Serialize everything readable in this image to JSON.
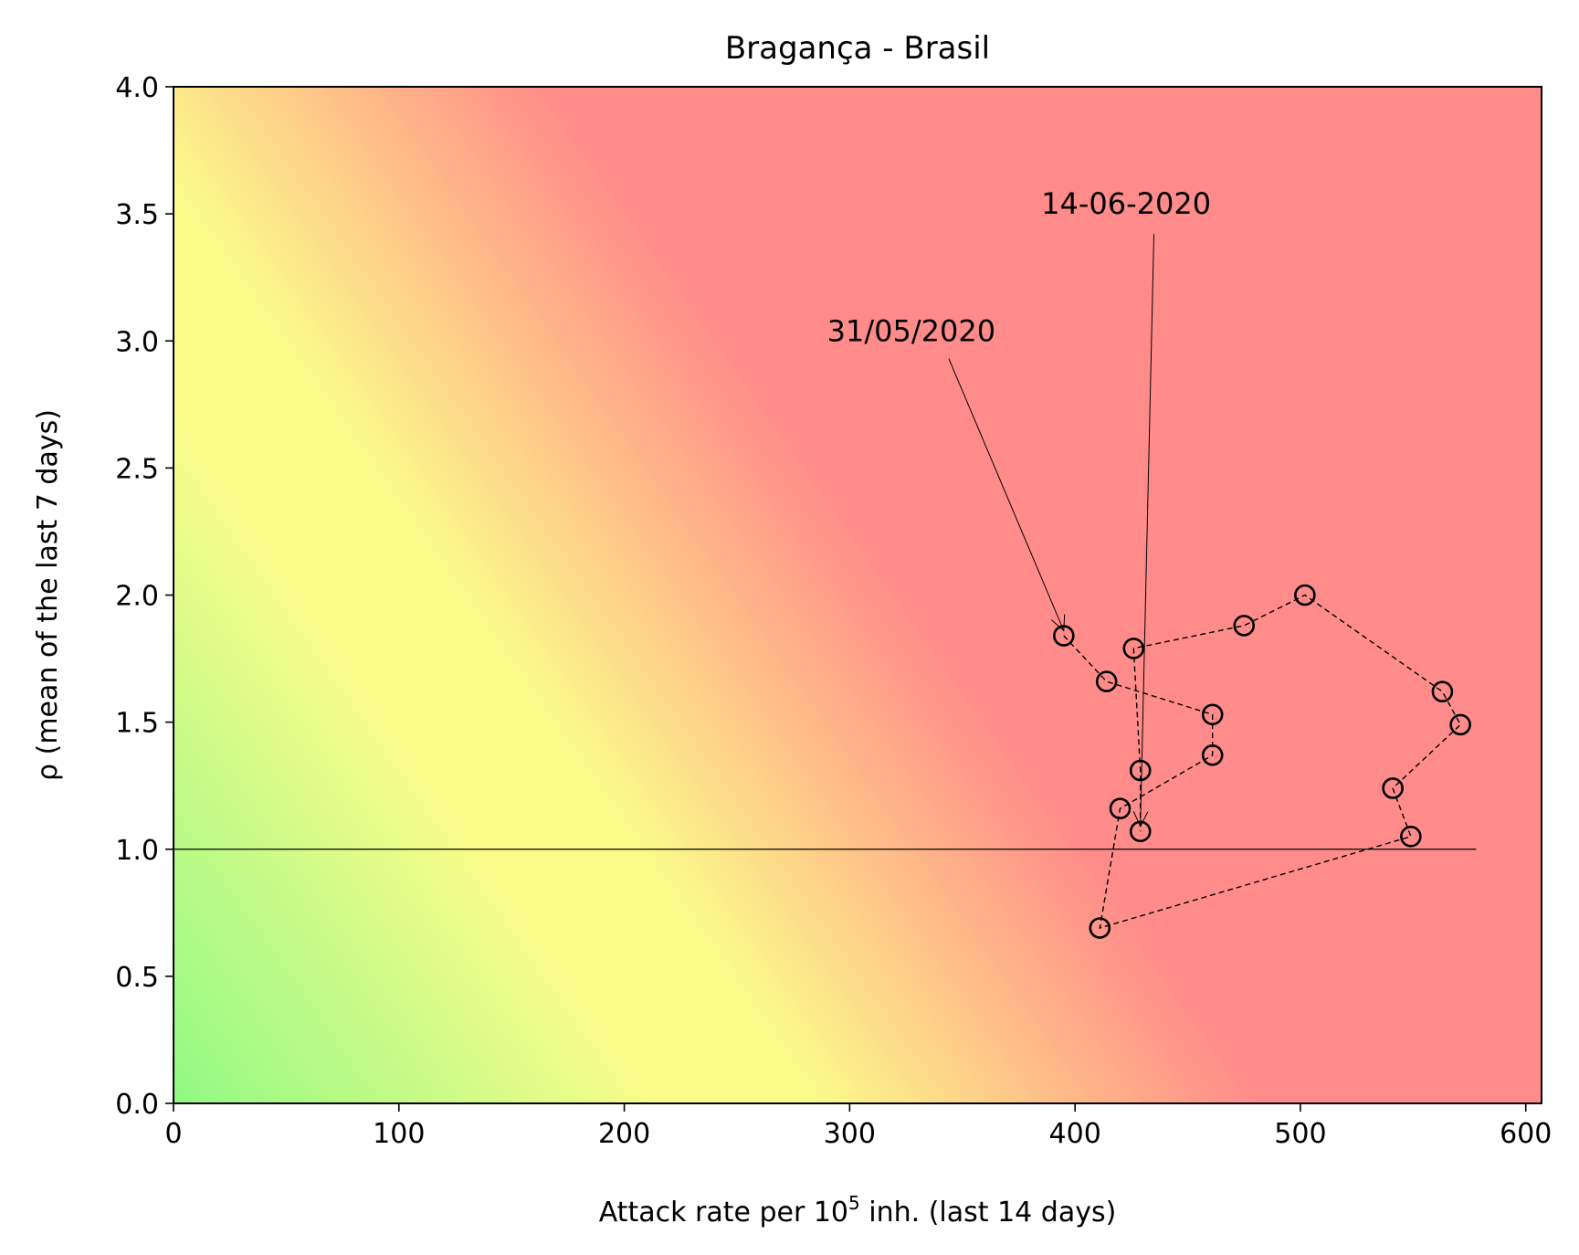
{
  "chart_data": {
    "type": "scatter",
    "title": "Bragança - Brasil",
    "xlabel": {
      "pre": "Attack rate per 10",
      "sup": "5",
      "post": " inh. (last 14 days)"
    },
    "ylabel": "ρ (mean of the last 7 days)",
    "xlim": [
      0,
      607
    ],
    "ylim": [
      0,
      4.0
    ],
    "x_ticks": [
      0,
      100,
      200,
      300,
      400,
      500,
      600
    ],
    "x_tick_labels": [
      "0",
      "100",
      "200",
      "300",
      "400",
      "500",
      "600"
    ],
    "y_ticks": [
      0,
      0.5,
      1.0,
      1.5,
      2.0,
      2.5,
      3.0,
      3.5,
      4.0
    ],
    "y_tick_labels": [
      "0.0",
      "0.5",
      "1.0",
      "1.5",
      "2.0",
      "2.5",
      "3.0",
      "3.5",
      "4.0"
    ],
    "grid": false,
    "background": "risk gradient: green (low attack rate, low ρ) through yellow to red (high attack rate, high ρ)",
    "colors": {
      "green": "#90f984",
      "yellow": "#fafc8a",
      "orange": "#ffbb88",
      "red": "#ff8c8a"
    },
    "reference_line": {
      "y": 1.0,
      "x_range": [
        0,
        578
      ]
    },
    "series": [
      {
        "marker": "open-circle",
        "line_style": "dashed",
        "x": [
          395,
          414,
          461,
          461,
          420,
          411,
          549,
          541,
          571,
          563,
          502,
          475,
          426,
          429,
          429
        ],
        "y": [
          1.84,
          1.66,
          1.53,
          1.37,
          1.16,
          0.69,
          1.05,
          1.24,
          1.49,
          1.62,
          2.0,
          1.88,
          1.79,
          1.31,
          1.07
        ]
      }
    ],
    "annotations": [
      {
        "text": "31/05/2020",
        "text_at": [
          290,
          3.0
        ],
        "arrow_from": [
          344,
          2.93
        ],
        "arrow_to": [
          395,
          1.86
        ]
      },
      {
        "text": "14-06-2020",
        "text_at": [
          385,
          3.5
        ],
        "arrow_from": [
          435,
          3.42
        ],
        "arrow_to": [
          429,
          1.09
        ]
      }
    ]
  }
}
